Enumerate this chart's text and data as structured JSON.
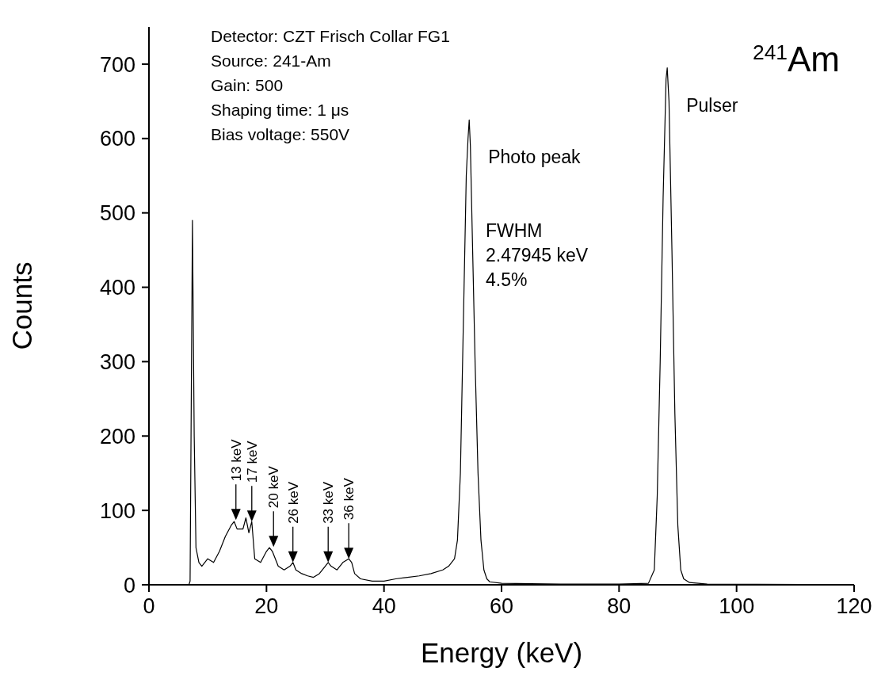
{
  "chart_data": {
    "type": "line",
    "title": "$^{241}$Am",
    "xlabel": "Energy (keV)",
    "ylabel": "Counts",
    "xlim": [
      0,
      120
    ],
    "xticks": [
      0,
      20,
      40,
      60,
      80,
      100,
      120
    ],
    "ylim": [
      0,
      750
    ],
    "yticks": [
      0,
      100,
      200,
      300,
      400,
      500,
      600,
      700
    ],
    "grid": false,
    "legend": false,
    "marker": "none",
    "line_style": "solid",
    "series": [
      {
        "color": "#000000",
        "x": [
          6.8,
          7.0,
          7.4,
          7.7,
          8.0,
          8.5,
          9,
          10,
          11,
          12,
          13,
          14,
          14.5,
          15,
          16,
          16.5,
          17,
          17.5,
          18,
          19,
          20,
          20.5,
          21,
          22,
          23,
          24,
          24.5,
          25,
          26,
          27,
          28,
          29,
          30,
          30.5,
          31,
          32,
          33,
          34,
          34.5,
          35,
          36,
          38,
          40,
          42,
          44,
          46,
          48,
          50,
          51,
          52,
          52.5,
          53,
          53.5,
          54,
          54.3,
          54.5,
          54.7,
          55,
          55.5,
          56,
          56.5,
          57,
          57.5,
          58,
          60,
          70,
          80,
          85,
          86,
          86.5,
          87,
          87.5,
          88,
          88.2,
          88.5,
          89,
          89.5,
          90,
          90.5,
          91,
          92,
          95,
          120
        ],
        "values": [
          0,
          5,
          490,
          200,
          50,
          30,
          25,
          35,
          30,
          45,
          65,
          80,
          85,
          75,
          75,
          90,
          70,
          85,
          35,
          30,
          45,
          50,
          45,
          25,
          20,
          25,
          30,
          20,
          15,
          12,
          10,
          15,
          25,
          30,
          25,
          20,
          30,
          35,
          30,
          15,
          8,
          5,
          5,
          8,
          10,
          12,
          15,
          20,
          25,
          35,
          60,
          150,
          350,
          550,
          600,
          625,
          590,
          480,
          300,
          150,
          60,
          20,
          8,
          4,
          2,
          1,
          1,
          2,
          20,
          120,
          300,
          520,
          680,
          695,
          650,
          450,
          230,
          80,
          20,
          8,
          3,
          1,
          0
        ]
      }
    ],
    "annotations": [
      "Detector: CZT Frisch Collar FG1",
      "Source: 241-Am",
      "Gain: 500",
      "Shaping time: 1 μs",
      "Bias voltage: 550V",
      {
        "text": "13 keV",
        "x": 14.8,
        "y": 87
      },
      {
        "text": "17 keV",
        "x": 17.5,
        "y": 85
      },
      {
        "text": "20 keV",
        "x": 21.2,
        "y": 51
      },
      {
        "text": "26 keV",
        "x": 24.5,
        "y": 30
      },
      {
        "text": "33 keV",
        "x": 30.5,
        "y": 30
      },
      {
        "text": "36 keV",
        "x": 34,
        "y": 35
      },
      {
        "text": "Photo peak",
        "x": 54.5,
        "y": 625
      },
      {
        "text": "Pulser",
        "x": 88.2,
        "y": 695
      },
      "FWHM\n2.47945 keV\n4.5%"
    ]
  }
}
